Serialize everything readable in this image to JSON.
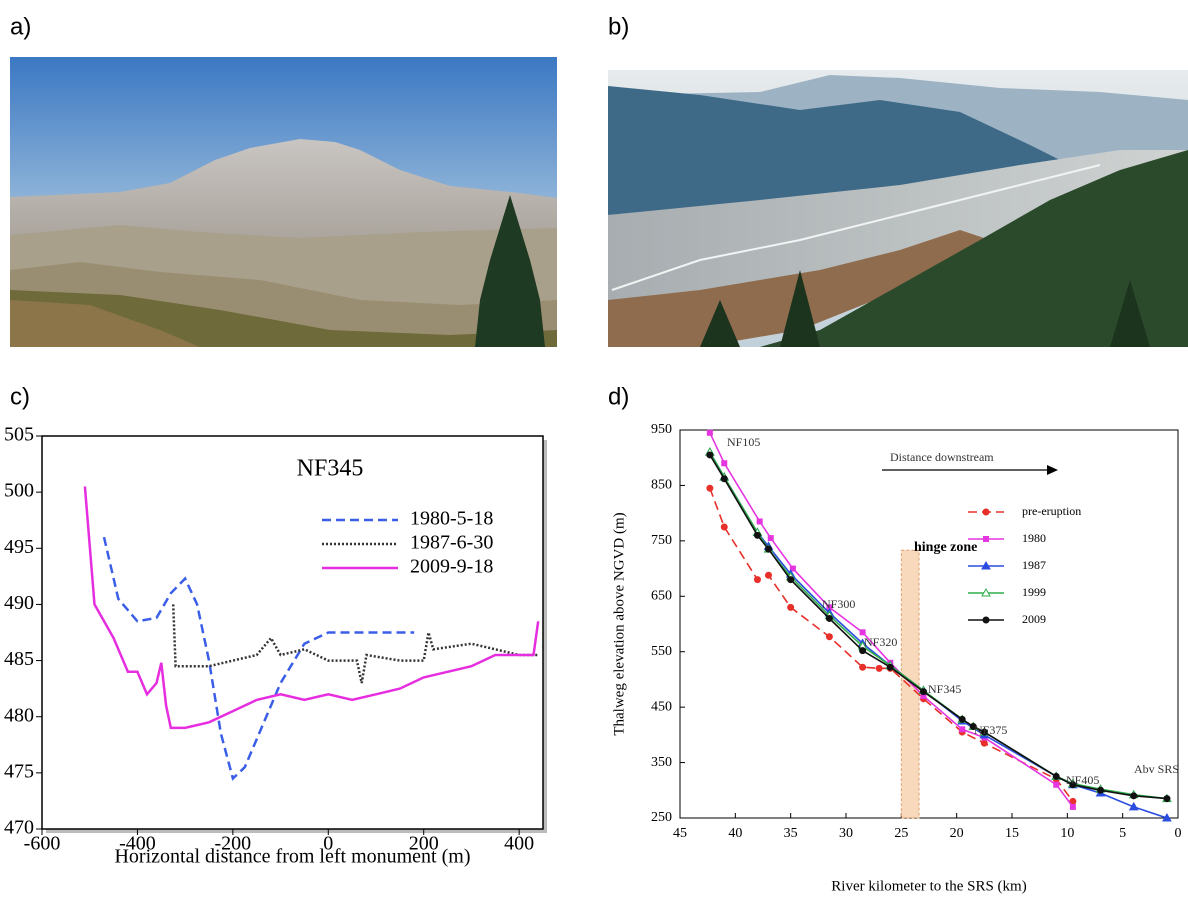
{
  "labels": [
    "a)",
    "b)",
    "c)",
    "d)"
  ],
  "chart_data": [
    {
      "type": "line",
      "title": "NF345",
      "xlabel": "Horizontal distance from left monument (m)",
      "xlim": [
        -600,
        450
      ],
      "xticks": [
        -600,
        -400,
        -200,
        0,
        200,
        400
      ],
      "ylim": [
        470,
        505
      ],
      "yticks": [
        470,
        475,
        480,
        485,
        490,
        495,
        500,
        505
      ],
      "series": [
        {
          "name": "1980-5-18",
          "color": "#3a5ee8",
          "dash": "dashed",
          "x": [
            -470,
            -440,
            -400,
            -360,
            -330,
            -300,
            -275,
            -250,
            -225,
            -200,
            -175,
            -150,
            -100,
            -50,
            0,
            100,
            180
          ],
          "values": [
            496,
            490.5,
            488.5,
            488.8,
            491,
            492.3,
            490,
            485,
            478.5,
            474.5,
            475.5,
            478,
            483,
            486.5,
            487.5,
            487.5,
            487.5
          ]
        },
        {
          "name": "1987-6-30",
          "color": "#333333",
          "dash": "dotted",
          "x": [
            -325,
            -320,
            -250,
            -200,
            -150,
            -120,
            -100,
            -50,
            0,
            60,
            70,
            80,
            150,
            200,
            210,
            220,
            300,
            350,
            400,
            440
          ],
          "values": [
            490,
            484.5,
            484.5,
            485,
            485.5,
            487,
            485.5,
            486,
            485,
            485,
            483,
            485.5,
            485,
            485,
            487.5,
            486,
            486.5,
            486,
            485.5,
            485.5
          ]
        },
        {
          "name": "2009-9-18",
          "color": "#e62ee0",
          "dash": "solid",
          "x": [
            -510,
            -490,
            -450,
            -420,
            -400,
            -380,
            -360,
            -350,
            -340,
            -330,
            -300,
            -250,
            -200,
            -150,
            -100,
            -50,
            0,
            50,
            100,
            150,
            200,
            250,
            300,
            350,
            400,
            430,
            440
          ],
          "values": [
            500.5,
            490,
            487,
            484,
            484,
            482,
            483,
            484.8,
            481,
            479,
            479,
            479.5,
            480.5,
            481.5,
            482,
            481.5,
            482,
            481.5,
            482,
            482.5,
            483.5,
            484,
            484.5,
            485.5,
            485.5,
            485.5,
            488.5
          ]
        }
      ]
    },
    {
      "type": "line",
      "xlabel": "River kilometer to the SRS (km)",
      "ylabel": "Thalweg elevation above NGVD (m)",
      "xlim": [
        45,
        0
      ],
      "xticks": [
        45,
        40,
        35,
        30,
        25,
        20,
        15,
        10,
        5,
        0
      ],
      "ylim": [
        250,
        950
      ],
      "yticks": [
        250,
        350,
        450,
        550,
        650,
        750,
        850,
        950
      ],
      "hinge_zone": {
        "x": [
          25,
          23.4
        ],
        "top": 733
      },
      "annotations": [
        "NF105",
        "NF300",
        "NF320",
        "NF345",
        "NF375",
        "NF405",
        "Abv SRS",
        "hinge zone",
        "Distance downstream"
      ],
      "series": [
        {
          "name": "pre-eruption",
          "color": "#e8302a",
          "marker": "circle",
          "dash": "dashed",
          "x": [
            42.3,
            41,
            38,
            37,
            35,
            31.5,
            28.5,
            27,
            26,
            23,
            19.5,
            17.5,
            11,
            9.5
          ],
          "values": [
            845,
            775,
            680,
            688,
            630,
            577,
            522,
            520,
            520,
            465,
            405,
            385,
            320,
            280
          ]
        },
        {
          "name": "1980",
          "color": "#e535e0",
          "marker": "square",
          "dash": "solid",
          "x": [
            42.3,
            41,
            37.8,
            36.8,
            34.8,
            31.5,
            28.5,
            26,
            23,
            19.5,
            17.5,
            11,
            9.5
          ],
          "values": [
            945,
            890,
            785,
            755,
            700,
            630,
            585,
            530,
            470,
            410,
            395,
            310,
            270
          ]
        },
        {
          "name": "1987",
          "color": "#2a4de0",
          "marker": "triangle",
          "dash": "solid",
          "x": [
            42.3,
            41,
            38,
            37,
            35,
            31.5,
            28.5,
            26,
            23,
            19.5,
            17.5,
            11,
            9.5,
            7,
            4,
            1
          ],
          "values": [
            910,
            865,
            765,
            740,
            690,
            620,
            565,
            525,
            480,
            425,
            400,
            325,
            310,
            295,
            270,
            250
          ]
        },
        {
          "name": "1999",
          "color": "#2fae4a",
          "marker": "triangle-open",
          "dash": "solid",
          "x": [
            42.3,
            41,
            38,
            37,
            35,
            31.5,
            28.5,
            26,
            23,
            19.5,
            18.5,
            17.5,
            11,
            9.5,
            7,
            4,
            1
          ],
          "values": [
            910,
            865,
            765,
            735,
            685,
            615,
            560,
            525,
            480,
            428,
            415,
            405,
            325,
            312,
            302,
            292,
            285
          ]
        },
        {
          "name": "2009",
          "color": "#111111",
          "marker": "circle",
          "dash": "solid",
          "x": [
            42.3,
            41,
            38,
            37,
            35,
            31.5,
            28.5,
            26,
            23,
            19.5,
            18.5,
            17.5,
            11,
            9.5,
            7,
            4,
            1
          ],
          "values": [
            905,
            862,
            760,
            735,
            680,
            610,
            552,
            522,
            478,
            428,
            415,
            405,
            325,
            310,
            300,
            290,
            285
          ]
        }
      ]
    }
  ]
}
